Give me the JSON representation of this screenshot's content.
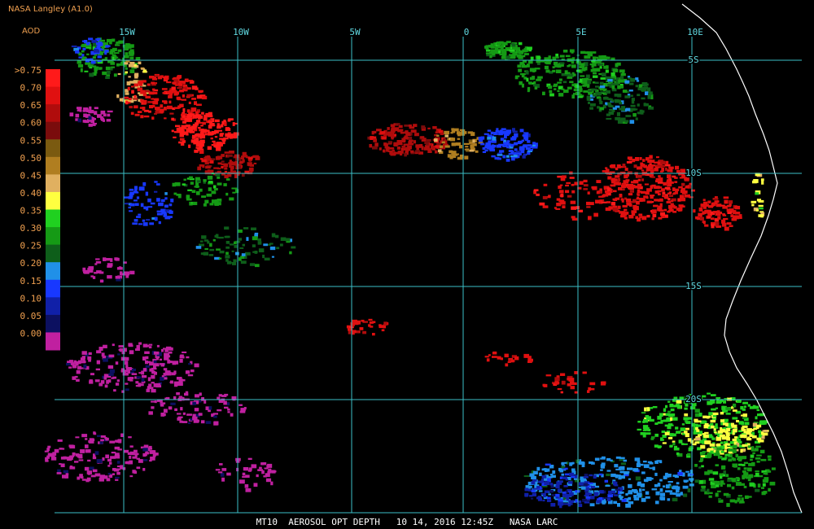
{
  "header": {
    "title": "NASA Langley (A1.0)",
    "subtitle": "AOD"
  },
  "legend": {
    "entries": [
      {
        "label": ">0.75",
        "color": "#ff1a1a"
      },
      {
        "label": "0.70",
        "color": "#e01010"
      },
      {
        "label": "0.65",
        "color": "#b00c0c"
      },
      {
        "label": "0.60",
        "color": "#7a0c0c"
      },
      {
        "label": "0.55",
        "color": "#7a5a10"
      },
      {
        "label": "0.50",
        "color": "#b07e20"
      },
      {
        "label": "0.45",
        "color": "#e0b060"
      },
      {
        "label": "0.40",
        "color": "#ffff40"
      },
      {
        "label": "0.35",
        "color": "#20d020"
      },
      {
        "label": "0.30",
        "color": "#159a15"
      },
      {
        "label": "0.25",
        "color": "#0e5e1a"
      },
      {
        "label": "0.20",
        "color": "#2090e8"
      },
      {
        "label": "0.15",
        "color": "#1838ff"
      },
      {
        "label": "0.10",
        "color": "#1020a8"
      },
      {
        "label": "0.05",
        "color": "#0c1060"
      },
      {
        "label": "0.00",
        "color": "#c020a0"
      }
    ]
  },
  "grid": {
    "longitudes": [
      "15W",
      "10W",
      "5W",
      "0",
      "5E",
      "10E"
    ],
    "latitudes": [
      "5S",
      "10S",
      "15S",
      "20S"
    ]
  },
  "footer": {
    "caption": "MT10  AEROSOL OPT DEPTH   10 14, 2016 12:45Z   NASA LARC"
  }
}
